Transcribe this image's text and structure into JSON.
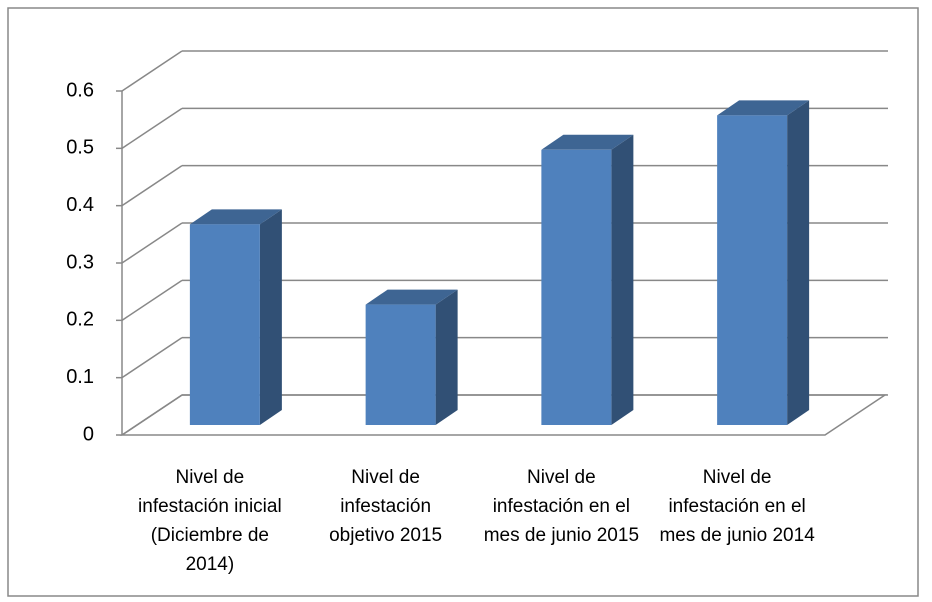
{
  "chart_data": {
    "type": "bar3d",
    "categories": [
      "Nivel de infestación inicial (Diciembre de 2014)",
      "Nivel de infestación objetivo 2015",
      "Nivel de infestación en el mes de junio 2015",
      "Nivel de infestación en el mes de junio 2014"
    ],
    "values": [
      0.35,
      0.21,
      0.48,
      0.54
    ],
    "color": "#4f81bd",
    "ylim": [
      0,
      0.6
    ],
    "yticks": [
      0,
      0.1,
      0.2,
      0.3,
      0.4,
      0.5,
      0.6
    ],
    "grid": true
  }
}
